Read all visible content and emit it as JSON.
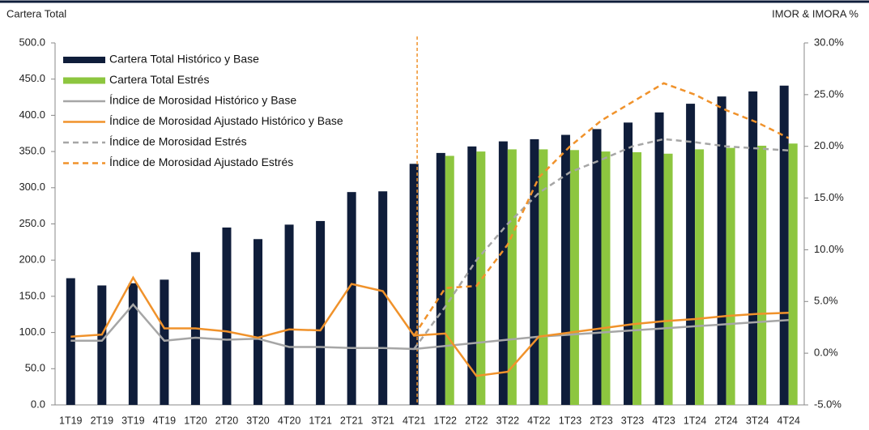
{
  "chart_data": {
    "type": "bar-line",
    "left_title": "Cartera Total",
    "right_title": "IMOR & IMORA %",
    "categories": [
      "1T19",
      "2T19",
      "3T19",
      "4T19",
      "1T20",
      "2T20",
      "3T20",
      "4T20",
      "1T21",
      "2T21",
      "3T21",
      "4T21",
      "1T22",
      "2T22",
      "3T22",
      "4T22",
      "1T23",
      "2T23",
      "3T23",
      "4T23",
      "1T24",
      "2T24",
      "3T24",
      "4T24"
    ],
    "ylim": [
      0,
      500
    ],
    "yticks": [
      {
        "value": 0,
        "label": "0.0"
      },
      {
        "value": 50,
        "label": "50.0"
      },
      {
        "value": 100,
        "label": "100.0"
      },
      {
        "value": 150,
        "label": "150.0"
      },
      {
        "value": 200,
        "label": "200.0"
      },
      {
        "value": 250,
        "label": "250.0"
      },
      {
        "value": 300,
        "label": "300.0"
      },
      {
        "value": 350,
        "label": "350.0"
      },
      {
        "value": 400,
        "label": "400.0"
      },
      {
        "value": 450,
        "label": "450.0"
      },
      {
        "value": 500,
        "label": "500.0"
      }
    ],
    "y2lim": [
      -5,
      30
    ],
    "y2ticks": [
      {
        "value": -5,
        "label": "-5.0%"
      },
      {
        "value": 0,
        "label": "0.0%"
      },
      {
        "value": 5,
        "label": "5.0%"
      },
      {
        "value": 10,
        "label": "10.0%"
      },
      {
        "value": 15,
        "label": "15.0%"
      },
      {
        "value": 20,
        "label": "20.0%"
      },
      {
        "value": 25,
        "label": "25.0%"
      },
      {
        "value": 30,
        "label": "30.0%"
      }
    ],
    "legend": "upper left",
    "series": [
      {
        "name": "Cartera Total Histórico y Base",
        "kind": "bar",
        "color": "#0f1d3a",
        "values": [
          175,
          165,
          168,
          173,
          211,
          245,
          229,
          249,
          254,
          294,
          295,
          333,
          348,
          357,
          364,
          367,
          373,
          381,
          390,
          404,
          416,
          426,
          433,
          441
        ]
      },
      {
        "name": "Cartera Total Estrés",
        "kind": "bar",
        "color": "#8dc63f",
        "values": [
          null,
          null,
          null,
          null,
          null,
          null,
          null,
          null,
          null,
          null,
          null,
          null,
          344,
          350,
          353,
          353,
          352,
          350,
          349,
          347,
          353,
          355,
          358,
          361
        ]
      },
      {
        "name": "Índice de Morosidad Histórico y Base",
        "kind": "line",
        "axis": "y2",
        "color": "#a6a6a6",
        "dashed": false,
        "values": [
          1.2,
          1.2,
          4.7,
          1.2,
          1.5,
          1.3,
          1.4,
          0.6,
          0.6,
          0.5,
          0.5,
          0.4,
          0.7,
          1.0,
          1.3,
          1.6,
          1.8,
          2.0,
          2.2,
          2.4,
          2.6,
          2.8,
          3.0,
          3.2
        ]
      },
      {
        "name": "Índice de Morosidad Ajustado Histórico y Base",
        "kind": "line",
        "axis": "y2",
        "color": "#f0922b",
        "dashed": false,
        "values": [
          1.6,
          1.8,
          7.3,
          2.4,
          2.4,
          2.1,
          1.5,
          2.3,
          2.2,
          6.7,
          6.0,
          1.7,
          1.9,
          -2.2,
          -1.8,
          1.6,
          2.0,
          2.4,
          2.8,
          3.1,
          3.3,
          3.6,
          3.8,
          3.9
        ]
      },
      {
        "name": "Índice de Morosidad Estrés",
        "kind": "line",
        "axis": "y2",
        "color": "#a6a6a6",
        "dashed": true,
        "values": [
          null,
          null,
          null,
          null,
          null,
          null,
          null,
          null,
          null,
          null,
          null,
          0.4,
          4.5,
          9.0,
          12.5,
          15.5,
          17.5,
          18.7,
          20.0,
          20.7,
          20.4,
          20.0,
          19.8,
          19.6
        ]
      },
      {
        "name": "Índice de Morosidad Ajustado Estrés",
        "kind": "line",
        "axis": "y2",
        "color": "#f0922b",
        "dashed": true,
        "values": [
          null,
          null,
          null,
          null,
          null,
          null,
          null,
          null,
          null,
          null,
          null,
          1.7,
          6.3,
          6.5,
          10.5,
          17.0,
          20.0,
          22.5,
          24.3,
          26.1,
          25.0,
          23.5,
          22.3,
          20.8
        ]
      }
    ]
  }
}
